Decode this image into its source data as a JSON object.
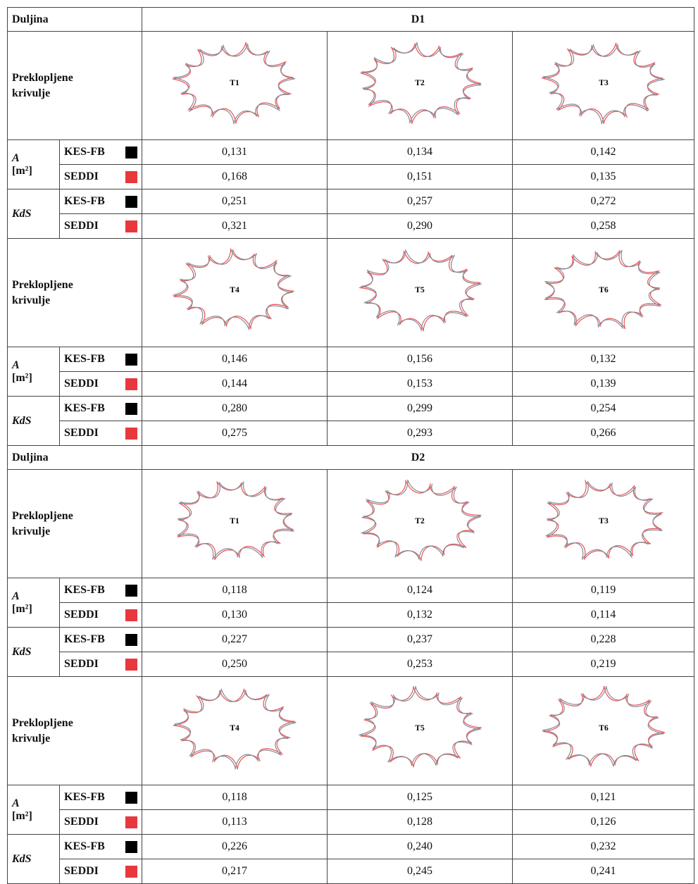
{
  "sections": [
    {
      "length_label": "Duljina",
      "length": "D1",
      "blocks": [
        {
          "curves_label": "Preklopljene krivulje",
          "samples": [
            "T1",
            "T2",
            "T3"
          ],
          "metrics": [
            {
              "symbol": "A",
              "unit": "[m²]",
              "rows": [
                {
                  "method": "KES-FB",
                  "values": [
                    "0,131",
                    "0,134",
                    "0,142"
                  ]
                },
                {
                  "method": "SEDDI",
                  "values": [
                    "0,168",
                    "0,151",
                    "0,135"
                  ]
                }
              ]
            },
            {
              "symbol": "KdS",
              "rows": [
                {
                  "method": "KES-FB",
                  "values": [
                    "0,251",
                    "0,257",
                    "0,272"
                  ]
                },
                {
                  "method": "SEDDI",
                  "values": [
                    "0,321",
                    "0,290",
                    "0,258"
                  ]
                }
              ]
            }
          ]
        },
        {
          "curves_label": "Preklopljene krivulje",
          "samples": [
            "T4",
            "T5",
            "T6"
          ],
          "metrics": [
            {
              "symbol": "A",
              "unit": "[m²]",
              "rows": [
                {
                  "method": "KES-FB",
                  "values": [
                    "0,146",
                    "0,156",
                    "0,132"
                  ]
                },
                {
                  "method": "SEDDI",
                  "values": [
                    "0,144",
                    "0,153",
                    "0,139"
                  ]
                }
              ]
            },
            {
              "symbol": "KdS",
              "rows": [
                {
                  "method": "KES-FB",
                  "values": [
                    "0,280",
                    "0,299",
                    "0,254"
                  ]
                },
                {
                  "method": "SEDDI",
                  "values": [
                    "0,275",
                    "0,293",
                    "0,266"
                  ]
                }
              ]
            }
          ]
        }
      ]
    },
    {
      "length_label": "Duljina",
      "length": "D2",
      "blocks": [
        {
          "curves_label": "Preklopljene krivulje",
          "samples": [
            "T1",
            "T2",
            "T3"
          ],
          "metrics": [
            {
              "symbol": "A",
              "unit": "[m²]",
              "rows": [
                {
                  "method": "KES-FB",
                  "values": [
                    "0,118",
                    "0,124",
                    "0,119"
                  ]
                },
                {
                  "method": "SEDDI",
                  "values": [
                    "0,130",
                    "0,132",
                    "0,114"
                  ]
                }
              ]
            },
            {
              "symbol": "KdS",
              "rows": [
                {
                  "method": "KES-FB",
                  "values": [
                    "0,227",
                    "0,237",
                    "0,228"
                  ]
                },
                {
                  "method": "SEDDI",
                  "values": [
                    "0,250",
                    "0,253",
                    "0,219"
                  ]
                }
              ]
            }
          ]
        },
        {
          "curves_label": "Preklopljene krivulje",
          "samples": [
            "T4",
            "T5",
            "T6"
          ],
          "metrics": [
            {
              "symbol": "A",
              "unit": "[m²]",
              "rows": [
                {
                  "method": "KES-FB",
                  "values": [
                    "0,118",
                    "0,125",
                    "0,121"
                  ]
                },
                {
                  "method": "SEDDI",
                  "values": [
                    "0,113",
                    "0,128",
                    "0,126"
                  ]
                }
              ]
            },
            {
              "symbol": "KdS",
              "rows": [
                {
                  "method": "KES-FB",
                  "values": [
                    "0,226",
                    "0,240",
                    "0,232"
                  ]
                },
                {
                  "method": "SEDDI",
                  "values": [
                    "0,217",
                    "0,245",
                    "0,241"
                  ]
                }
              ]
            }
          ]
        }
      ]
    }
  ]
}
